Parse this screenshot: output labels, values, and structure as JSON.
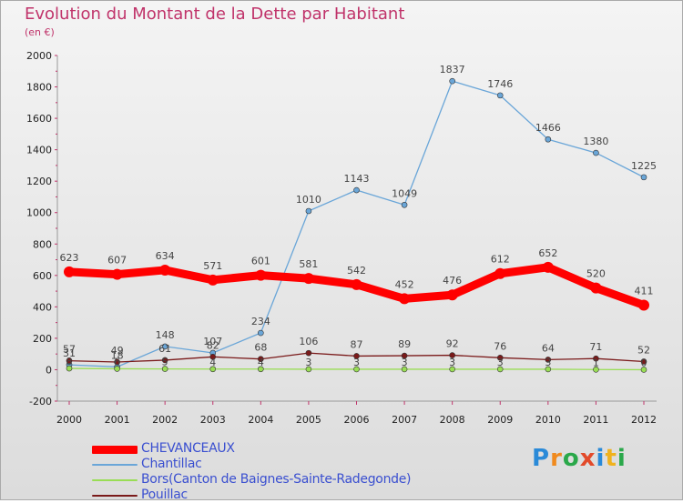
{
  "title": "Evolution du Montant de la Dette par Habitant",
  "subtitle": "(en €)",
  "colors": {
    "title": "#c0336a",
    "axis_text": "#222222",
    "value_label": "#444444",
    "legend_text": "#3a4fd0"
  },
  "chart_data": {
    "type": "line",
    "title": "Evolution du Montant de la Dette par Habitant",
    "ylabel": "(en €)",
    "xlabel": "",
    "x": [
      "2000",
      "2001",
      "2002",
      "2003",
      "2004",
      "2005",
      "2006",
      "2007",
      "2008",
      "2009",
      "2010",
      "2011",
      "2012"
    ],
    "ylim": [
      -200,
      2000
    ],
    "yticks": [
      "-200",
      "0",
      "200",
      "400",
      "600",
      "800",
      "1000",
      "1200",
      "1400",
      "1600",
      "1800",
      "2000"
    ],
    "grid": false,
    "legend_position": "bottom",
    "series": [
      {
        "name": "CHEVANCEAUX",
        "color": "#ff0000",
        "values": [
          623,
          607,
          634,
          571,
          601,
          581,
          542,
          452,
          476,
          612,
          652,
          520,
          411
        ],
        "labels": [
          "623",
          "607",
          "634",
          "571",
          "601",
          "581",
          "542",
          "452",
          "476",
          "612",
          "652",
          "520",
          "411"
        ]
      },
      {
        "name": "Chantillac",
        "color": "#6aa6d8",
        "values": [
          31,
          18,
          148,
          107,
          234,
          1010,
          1143,
          1049,
          1837,
          1746,
          1466,
          1380,
          1225
        ],
        "labels": [
          "31",
          "18",
          "148",
          "107",
          "234",
          "1010",
          "1143",
          "1049",
          "1837",
          "1746",
          "1466",
          "1380",
          "1225"
        ]
      },
      {
        "name": "Bors(Canton de Baignes-Sainte-Radegonde)",
        "color": "#99dd55",
        "values": [
          8,
          6,
          5,
          4,
          4,
          3,
          3,
          3,
          3,
          3,
          3,
          1,
          0
        ],
        "labels": [
          "8",
          "6",
          "5",
          "4",
          "4",
          "3",
          "3",
          "3",
          "3",
          "3",
          "3",
          "1",
          "0"
        ]
      },
      {
        "name": "Pouillac",
        "color": "#7a1a1a",
        "values": [
          57,
          49,
          61,
          82,
          68,
          106,
          87,
          89,
          92,
          76,
          64,
          71,
          52
        ],
        "labels": [
          "57",
          "49",
          "61",
          "82",
          "68",
          "106",
          "87",
          "89",
          "92",
          "76",
          "64",
          "71",
          "52"
        ]
      }
    ]
  },
  "brand": {
    "letters": [
      "P",
      "r",
      "o",
      "x",
      "i",
      "t",
      "i"
    ],
    "colors": [
      "#2a8ad8",
      "#f08a1e",
      "#2aa84a",
      "#e24a2a",
      "#2a8ad8",
      "#f0b21e",
      "#2aa84a"
    ]
  }
}
